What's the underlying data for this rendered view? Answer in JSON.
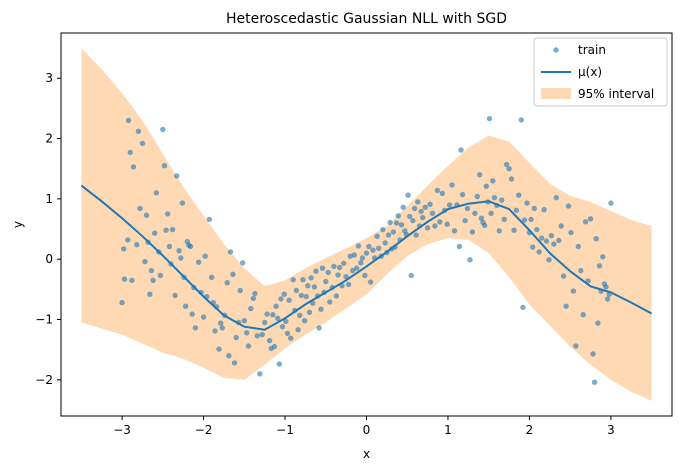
{
  "chart_data": {
    "type": "scatter",
    "title": "Heteroscedastic Gaussian NLL with SGD",
    "xlabel": "x",
    "ylabel": "y",
    "xlim": [
      -3.75,
      3.75
    ],
    "ylim": [
      -2.6,
      3.75
    ],
    "xticks": [
      -3,
      -2,
      -1,
      0,
      1,
      2,
      3
    ],
    "yticks": [
      -2,
      -1,
      0,
      1,
      2,
      3
    ],
    "grid": false,
    "legend_position": "top-right",
    "legend": [
      "train",
      "μ(x)",
      "95% interval"
    ],
    "colors": {
      "scatter": "#1f77b4",
      "line": "#1f77b4",
      "band": "#ffcc99"
    },
    "series": [
      {
        "name": "train",
        "kind": "scatter",
        "points": [
          [
            -3.0,
            -0.72
          ],
          [
            -2.98,
            0.17
          ],
          [
            -2.97,
            -0.33
          ],
          [
            -2.93,
            0.32
          ],
          [
            -2.92,
            2.3
          ],
          [
            -2.9,
            1.77
          ],
          [
            -2.88,
            -0.35
          ],
          [
            -2.86,
            1.53
          ],
          [
            -2.82,
            0.24
          ],
          [
            -2.8,
            2.12
          ],
          [
            -2.78,
            0.84
          ],
          [
            -2.75,
            1.92
          ],
          [
            -2.72,
            -0.04
          ],
          [
            -2.7,
            0.73
          ],
          [
            -2.68,
            0.28
          ],
          [
            -2.66,
            -0.58
          ],
          [
            -2.64,
            -0.19
          ],
          [
            -2.62,
            -0.35
          ],
          [
            -2.6,
            0.43
          ],
          [
            -2.58,
            1.1
          ],
          [
            -2.55,
            0.12
          ],
          [
            -2.53,
            -0.27
          ],
          [
            -2.5,
            2.15
          ],
          [
            -2.48,
            1.55
          ],
          [
            -2.46,
            0.48
          ],
          [
            -2.44,
            0.75
          ],
          [
            -2.42,
            0.21
          ],
          [
            -2.4,
            -0.08
          ],
          [
            -2.38,
            0.49
          ],
          [
            -2.35,
            -0.6
          ],
          [
            -2.33,
            1.38
          ],
          [
            -2.3,
            0.14
          ],
          [
            -2.28,
            0.02
          ],
          [
            -2.26,
            0.93
          ],
          [
            -2.24,
            -0.3
          ],
          [
            -2.22,
            -0.78
          ],
          [
            -2.2,
            0.29
          ],
          [
            -2.18,
            0.23
          ],
          [
            -2.16,
            0.21
          ],
          [
            -2.14,
            -0.91
          ],
          [
            -2.12,
            -0.47
          ],
          [
            -2.1,
            -1.14
          ],
          [
            -2.06,
            -0.05
          ],
          [
            -2.03,
            -0.55
          ],
          [
            -2.0,
            -0.96
          ],
          [
            -1.98,
            0.05
          ],
          [
            -1.96,
            -0.62
          ],
          [
            -1.93,
            0.66
          ],
          [
            -1.9,
            -0.3
          ],
          [
            -1.88,
            -0.72
          ],
          [
            -1.86,
            -1.19
          ],
          [
            -1.84,
            -0.79
          ],
          [
            -1.81,
            -1.49
          ],
          [
            -1.79,
            -1.06
          ],
          [
            -1.77,
            -1.14
          ],
          [
            -1.74,
            -0.93
          ],
          [
            -1.71,
            -0.39
          ],
          [
            -1.69,
            -1.6
          ],
          [
            -1.67,
            0.12
          ],
          [
            -1.64,
            -0.25
          ],
          [
            -1.62,
            -1.72
          ],
          [
            -1.6,
            -1.3
          ],
          [
            -1.57,
            -1.05
          ],
          [
            -1.55,
            -0.52
          ],
          [
            -1.52,
            -0.06
          ],
          [
            -1.5,
            -1.02
          ],
          [
            -1.47,
            -1.22
          ],
          [
            -1.45,
            -1.44
          ],
          [
            -1.42,
            -0.82
          ],
          [
            -1.39,
            -0.65
          ],
          [
            -1.37,
            -0.57
          ],
          [
            -1.34,
            -1.27
          ],
          [
            -1.31,
            -1.9
          ],
          [
            -1.28,
            -1.25
          ],
          [
            -1.25,
            -1.05
          ],
          [
            -1.22,
            -0.91
          ],
          [
            -1.19,
            -1.35
          ],
          [
            -1.17,
            -1.48
          ],
          [
            -1.15,
            -0.92
          ],
          [
            -1.13,
            -1.45
          ],
          [
            -1.11,
            -0.78
          ],
          [
            -1.09,
            -0.98
          ],
          [
            -1.07,
            -1.74
          ],
          [
            -1.05,
            -0.66
          ],
          [
            -1.03,
            -1.12
          ],
          [
            -1.01,
            -0.58
          ],
          [
            -0.99,
            -1.03
          ],
          [
            -0.97,
            -1.23
          ],
          [
            -0.95,
            -0.68
          ],
          [
            -0.93,
            -1.31
          ],
          [
            -0.9,
            -0.34
          ],
          [
            -0.88,
            -0.85
          ],
          [
            -0.86,
            -0.52
          ],
          [
            -0.84,
            -1.17
          ],
          [
            -0.82,
            -0.93
          ],
          [
            -0.8,
            -0.6
          ],
          [
            -0.78,
            -0.34
          ],
          [
            -0.76,
            -1.02
          ],
          [
            -0.74,
            -0.62
          ],
          [
            -0.72,
            -0.44
          ],
          [
            -0.7,
            -0.88
          ],
          [
            -0.68,
            -0.31
          ],
          [
            -0.66,
            -0.73
          ],
          [
            -0.64,
            -0.46
          ],
          [
            -0.62,
            -0.2
          ],
          [
            -0.6,
            -0.61
          ],
          [
            -0.58,
            -1.14
          ],
          [
            -0.56,
            -0.83
          ],
          [
            -0.54,
            -0.15
          ],
          [
            -0.52,
            -0.55
          ],
          [
            -0.5,
            -0.37
          ],
          [
            -0.47,
            -0.22
          ],
          [
            -0.45,
            -0.71
          ],
          [
            -0.42,
            -0.47
          ],
          [
            -0.4,
            -0.12
          ],
          [
            -0.37,
            -0.61
          ],
          [
            -0.35,
            -0.26
          ],
          [
            -0.33,
            -0.14
          ],
          [
            -0.3,
            -0.44
          ],
          [
            -0.28,
            -0.07
          ],
          [
            -0.25,
            -0.29
          ],
          [
            -0.22,
            -0.42
          ],
          [
            -0.2,
            0.05
          ],
          [
            -0.17,
            -0.19
          ],
          [
            -0.15,
            0.07
          ],
          [
            -0.12,
            -0.15
          ],
          [
            -0.1,
            0.22
          ],
          [
            -0.07,
            -0.06
          ],
          [
            -0.05,
            0.02
          ],
          [
            -0.02,
            -0.27
          ],
          [
            0.0,
            0.1
          ],
          [
            0.03,
            0.21
          ],
          [
            0.05,
            -0.38
          ],
          [
            0.08,
            0.15
          ],
          [
            0.1,
            0.02
          ],
          [
            0.13,
            0.38
          ],
          [
            0.15,
            0.18
          ],
          [
            0.18,
            0.05
          ],
          [
            0.2,
            0.49
          ],
          [
            0.23,
            0.27
          ],
          [
            0.25,
            0.11
          ],
          [
            0.27,
            0.4
          ],
          [
            0.29,
            0.61
          ],
          [
            0.31,
            0.17
          ],
          [
            0.33,
            0.45
          ],
          [
            0.35,
            0.2
          ],
          [
            0.37,
            0.6
          ],
          [
            0.39,
            0.72
          ],
          [
            0.41,
            0.32
          ],
          [
            0.43,
            0.57
          ],
          [
            0.45,
            0.86
          ],
          [
            0.47,
            0.47
          ],
          [
            0.49,
            0.41
          ],
          [
            0.51,
            1.06
          ],
          [
            0.53,
            0.71
          ],
          [
            0.55,
            -0.27
          ],
          [
            0.57,
            0.64
          ],
          [
            0.59,
            0.84
          ],
          [
            0.61,
            0.4
          ],
          [
            0.63,
            0.95
          ],
          [
            0.65,
            0.55
          ],
          [
            0.67,
            0.79
          ],
          [
            0.69,
            0.69
          ],
          [
            0.72,
            0.86
          ],
          [
            0.75,
            0.52
          ],
          [
            0.78,
            0.91
          ],
          [
            0.81,
            0.76
          ],
          [
            0.84,
            0.55
          ],
          [
            0.87,
            1.14
          ],
          [
            0.9,
            0.62
          ],
          [
            0.93,
            1.09
          ],
          [
            0.96,
            0.81
          ],
          [
            0.99,
            0.58
          ],
          [
            1.02,
            0.9
          ],
          [
            1.05,
            1.23
          ],
          [
            1.08,
            0.47
          ],
          [
            1.11,
            0.9
          ],
          [
            1.14,
            0.21
          ],
          [
            1.16,
            1.81
          ],
          [
            1.18,
            1.07
          ],
          [
            1.21,
            0.64
          ],
          [
            1.24,
            0.84
          ],
          [
            1.27,
            -0.01
          ],
          [
            1.3,
            0.45
          ],
          [
            1.33,
            0.76
          ],
          [
            1.36,
            1.04
          ],
          [
            1.39,
            1.4
          ],
          [
            1.41,
            0.68
          ],
          [
            1.43,
            0.61
          ],
          [
            1.45,
            0.56
          ],
          [
            1.47,
            1.21
          ],
          [
            1.49,
            0.95
          ],
          [
            1.51,
            2.33
          ],
          [
            1.53,
            0.76
          ],
          [
            1.55,
            1.3
          ],
          [
            1.57,
            1.02
          ],
          [
            1.6,
            0.89
          ],
          [
            1.63,
            0.47
          ],
          [
            1.66,
            0.98
          ],
          [
            1.69,
            0.66
          ],
          [
            1.72,
            1.57
          ],
          [
            1.75,
            1.5
          ],
          [
            1.78,
            1.33
          ],
          [
            1.81,
            0.48
          ],
          [
            1.84,
            0.81
          ],
          [
            1.87,
            1.06
          ],
          [
            1.9,
            2.31
          ],
          [
            1.92,
            -0.8
          ],
          [
            1.94,
            0.65
          ],
          [
            1.97,
            0.93
          ],
          [
            2.0,
            0.44
          ],
          [
            2.02,
            0.66
          ],
          [
            2.04,
            0.2
          ],
          [
            2.06,
            0.84
          ],
          [
            2.09,
            0.49
          ],
          [
            2.12,
            0.12
          ],
          [
            2.15,
            0.35
          ],
          [
            2.18,
            0.82
          ],
          [
            2.21,
            0.3
          ],
          [
            2.24,
            -0.01
          ],
          [
            2.27,
            0.39
          ],
          [
            2.3,
            0.25
          ],
          [
            2.33,
            1.02
          ],
          [
            2.36,
            0.31
          ],
          [
            2.39,
            0.55
          ],
          [
            2.42,
            -0.28
          ],
          [
            2.45,
            -0.78
          ],
          [
            2.48,
            0.88
          ],
          [
            2.51,
            0.44
          ],
          [
            2.54,
            -0.53
          ],
          [
            2.57,
            -1.44
          ],
          [
            2.6,
            0.21
          ],
          [
            2.63,
            -0.19
          ],
          [
            2.66,
            -0.92
          ],
          [
            2.69,
            0.62
          ],
          [
            2.72,
            -0.36
          ],
          [
            2.75,
            0.67
          ],
          [
            2.78,
            -1.57
          ],
          [
            2.8,
            -2.04
          ],
          [
            2.82,
            0.34
          ],
          [
            2.84,
            -1.06
          ],
          [
            2.86,
            -0.11
          ],
          [
            2.88,
            -0.53
          ],
          [
            2.9,
            0.04
          ],
          [
            2.92,
            -0.41
          ],
          [
            2.94,
            -0.46
          ],
          [
            2.96,
            -0.66
          ],
          [
            2.98,
            -0.58
          ],
          [
            3.0,
            0.93
          ]
        ]
      },
      {
        "name": "μ(x)",
        "kind": "line",
        "x": [
          -3.5,
          -3.25,
          -3.0,
          -2.75,
          -2.5,
          -2.25,
          -2.0,
          -1.75,
          -1.5,
          -1.25,
          -1.0,
          -0.75,
          -0.5,
          -0.25,
          0.0,
          0.25,
          0.5,
          0.75,
          1.0,
          1.25,
          1.5,
          1.75,
          2.0,
          2.25,
          2.5,
          2.75,
          3.0,
          3.25,
          3.5
        ],
        "y": [
          1.22,
          0.96,
          0.68,
          0.38,
          0.06,
          -0.28,
          -0.62,
          -0.93,
          -1.12,
          -1.17,
          -0.98,
          -0.75,
          -0.55,
          -0.35,
          -0.12,
          0.12,
          0.38,
          0.62,
          0.83,
          0.92,
          0.96,
          0.83,
          0.48,
          0.1,
          -0.2,
          -0.45,
          -0.55,
          -0.72,
          -0.9
        ]
      },
      {
        "name": "95% interval",
        "kind": "band",
        "x": [
          -3.5,
          -3.25,
          -3.0,
          -2.75,
          -2.5,
          -2.25,
          -2.0,
          -1.75,
          -1.5,
          -1.25,
          -1.0,
          -0.75,
          -0.5,
          -0.25,
          0.0,
          0.25,
          0.5,
          0.75,
          1.0,
          1.25,
          1.5,
          1.75,
          2.0,
          2.25,
          2.5,
          2.75,
          3.0,
          3.25,
          3.5
        ],
        "upper": [
          3.5,
          3.15,
          2.75,
          2.3,
          1.75,
          1.2,
          0.72,
          0.25,
          -0.15,
          -0.45,
          -0.35,
          -0.15,
          0.02,
          0.18,
          0.35,
          0.55,
          0.88,
          1.22,
          1.55,
          1.85,
          2.05,
          1.95,
          1.6,
          1.25,
          1.05,
          0.95,
          0.8,
          0.65,
          0.55
        ],
        "lower": [
          -1.05,
          -1.15,
          -1.25,
          -1.4,
          -1.55,
          -1.65,
          -1.8,
          -1.97,
          -2.0,
          -1.75,
          -1.48,
          -1.25,
          -1.05,
          -0.82,
          -0.58,
          -0.25,
          0.05,
          0.25,
          0.35,
          0.32,
          0.1,
          -0.3,
          -0.75,
          -1.1,
          -1.45,
          -1.75,
          -2.0,
          -2.2,
          -2.35
        ]
      }
    ]
  }
}
